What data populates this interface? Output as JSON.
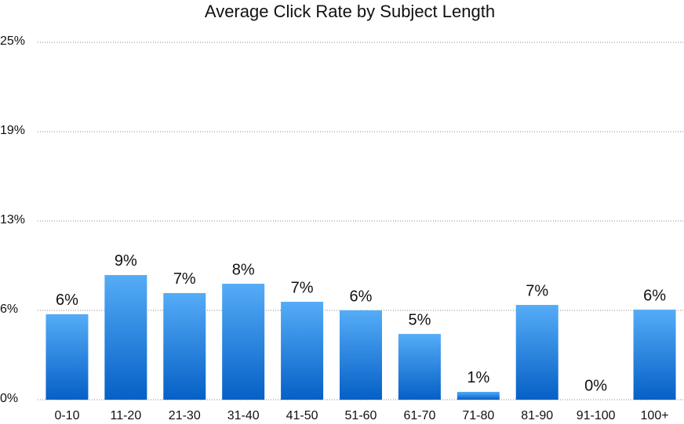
{
  "chart_data": {
    "type": "bar",
    "title": "Average Click Rate by Subject Length",
    "categories": [
      "0-10",
      "11-20",
      "21-30",
      "31-40",
      "41-50",
      "51-60",
      "61-70",
      "71-80",
      "81-90",
      "91-100",
      "100+"
    ],
    "values": [
      5.98,
      8.72,
      7.46,
      8.11,
      6.85,
      6.25,
      4.6,
      0.55,
      6.63,
      0,
      6.3
    ],
    "value_labels": [
      "6%",
      "9%",
      "7%",
      "8%",
      "7%",
      "6%",
      "5%",
      "1%",
      "7%",
      "0%",
      "6%"
    ],
    "gradient": [
      "#55acf7",
      "#0660c6"
    ],
    "ylim": [
      0,
      25
    ],
    "yticks": [
      {
        "value": 0,
        "label": "0%"
      },
      {
        "value": 6.25,
        "label": "6%"
      },
      {
        "value": 12.5,
        "label": "13%"
      },
      {
        "value": 18.75,
        "label": "19%"
      },
      {
        "value": 25,
        "label": "25%"
      }
    ],
    "grid": true
  }
}
